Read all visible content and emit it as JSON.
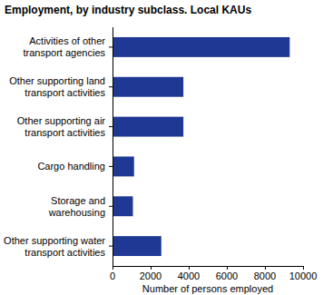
{
  "chart_data": {
    "type": "bar",
    "orientation": "horizontal",
    "title": "Employment, by industry subclass. Local KAUs",
    "x_label": "Number of persons employed",
    "categories": [
      "Activities of other transport agencies",
      "Other supporting land transport activities",
      "Other supporting air transport activities",
      "Cargo handling",
      "Storage and warehousing",
      "Other supporting water transport activities"
    ],
    "values": [
      9300,
      3720,
      3720,
      1130,
      1070,
      2560
    ],
    "color": "#1f3893",
    "xlim": [
      0,
      10000
    ],
    "xticks": [
      0,
      2000,
      4000,
      6000,
      8000,
      10000
    ],
    "grid": false
  }
}
